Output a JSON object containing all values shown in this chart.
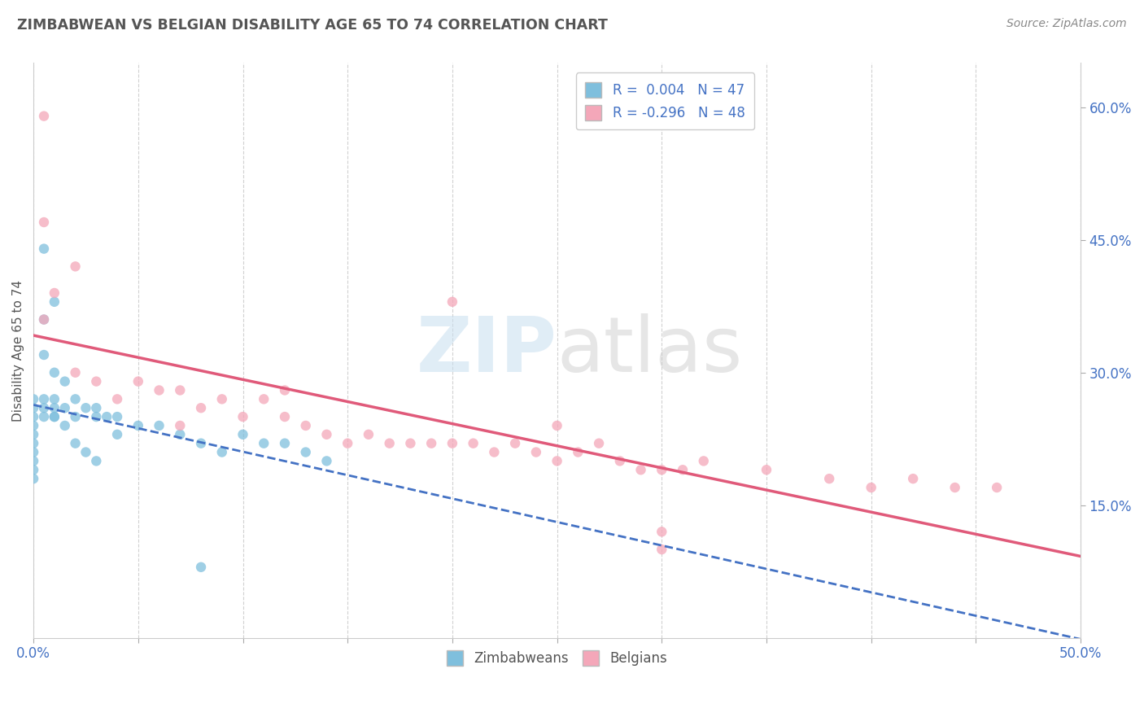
{
  "title": "ZIMBABWEAN VS BELGIAN DISABILITY AGE 65 TO 74 CORRELATION CHART",
  "source": "Source: ZipAtlas.com",
  "ylabel": "Disability Age 65 to 74",
  "xlim": [
    0.0,
    0.5
  ],
  "ylim": [
    0.0,
    0.65
  ],
  "xticks": [
    0.0,
    0.05,
    0.1,
    0.15,
    0.2,
    0.25,
    0.3,
    0.35,
    0.4,
    0.45,
    0.5
  ],
  "xtick_labels": [
    "0.0%",
    "",
    "",
    "",
    "",
    "",
    "",
    "",
    "",
    "",
    "50.0%"
  ],
  "yticks_right": [
    0.15,
    0.3,
    0.45,
    0.6
  ],
  "ytick_labels_right": [
    "15.0%",
    "30.0%",
    "45.0%",
    "60.0%"
  ],
  "zim_color": "#7fbfdd",
  "bel_color": "#f4a7b9",
  "zim_line_color": "#4472c4",
  "bel_line_color": "#e05a7a",
  "R_zim": 0.004,
  "N_zim": 47,
  "R_bel": -0.296,
  "N_bel": 48,
  "background_color": "#ffffff",
  "grid_color": "#cccccc",
  "zim_points_x": [
    0.0,
    0.0,
    0.0,
    0.0,
    0.0,
    0.0,
    0.0,
    0.0,
    0.0,
    0.0,
    0.005,
    0.005,
    0.005,
    0.005,
    0.005,
    0.01,
    0.01,
    0.01,
    0.01,
    0.01,
    0.015,
    0.015,
    0.02,
    0.02,
    0.025,
    0.03,
    0.03,
    0.035,
    0.04,
    0.04,
    0.05,
    0.06,
    0.07,
    0.08,
    0.09,
    0.1,
    0.11,
    0.12,
    0.13,
    0.14,
    0.005,
    0.01,
    0.015,
    0.02,
    0.025,
    0.03,
    0.08
  ],
  "zim_points_y": [
    0.27,
    0.26,
    0.25,
    0.24,
    0.23,
    0.22,
    0.21,
    0.2,
    0.19,
    0.18,
    0.44,
    0.32,
    0.27,
    0.26,
    0.25,
    0.38,
    0.3,
    0.27,
    0.26,
    0.25,
    0.29,
    0.26,
    0.27,
    0.25,
    0.26,
    0.26,
    0.25,
    0.25,
    0.25,
    0.23,
    0.24,
    0.24,
    0.23,
    0.22,
    0.21,
    0.23,
    0.22,
    0.22,
    0.21,
    0.2,
    0.36,
    0.25,
    0.24,
    0.22,
    0.21,
    0.2,
    0.08
  ],
  "bel_points_x": [
    0.005,
    0.005,
    0.005,
    0.01,
    0.02,
    0.02,
    0.03,
    0.04,
    0.05,
    0.06,
    0.07,
    0.07,
    0.08,
    0.09,
    0.1,
    0.11,
    0.12,
    0.12,
    0.13,
    0.14,
    0.15,
    0.16,
    0.17,
    0.18,
    0.19,
    0.2,
    0.21,
    0.22,
    0.23,
    0.24,
    0.25,
    0.26,
    0.27,
    0.28,
    0.29,
    0.3,
    0.31,
    0.32,
    0.35,
    0.38,
    0.4,
    0.42,
    0.44,
    0.46,
    0.2,
    0.25,
    0.3,
    0.3
  ],
  "bel_points_y": [
    0.59,
    0.47,
    0.36,
    0.39,
    0.42,
    0.3,
    0.29,
    0.27,
    0.29,
    0.28,
    0.28,
    0.24,
    0.26,
    0.27,
    0.25,
    0.27,
    0.25,
    0.28,
    0.24,
    0.23,
    0.22,
    0.23,
    0.22,
    0.22,
    0.22,
    0.22,
    0.22,
    0.21,
    0.22,
    0.21,
    0.2,
    0.21,
    0.22,
    0.2,
    0.19,
    0.19,
    0.19,
    0.2,
    0.19,
    0.18,
    0.17,
    0.18,
    0.17,
    0.17,
    0.38,
    0.24,
    0.12,
    0.1
  ]
}
